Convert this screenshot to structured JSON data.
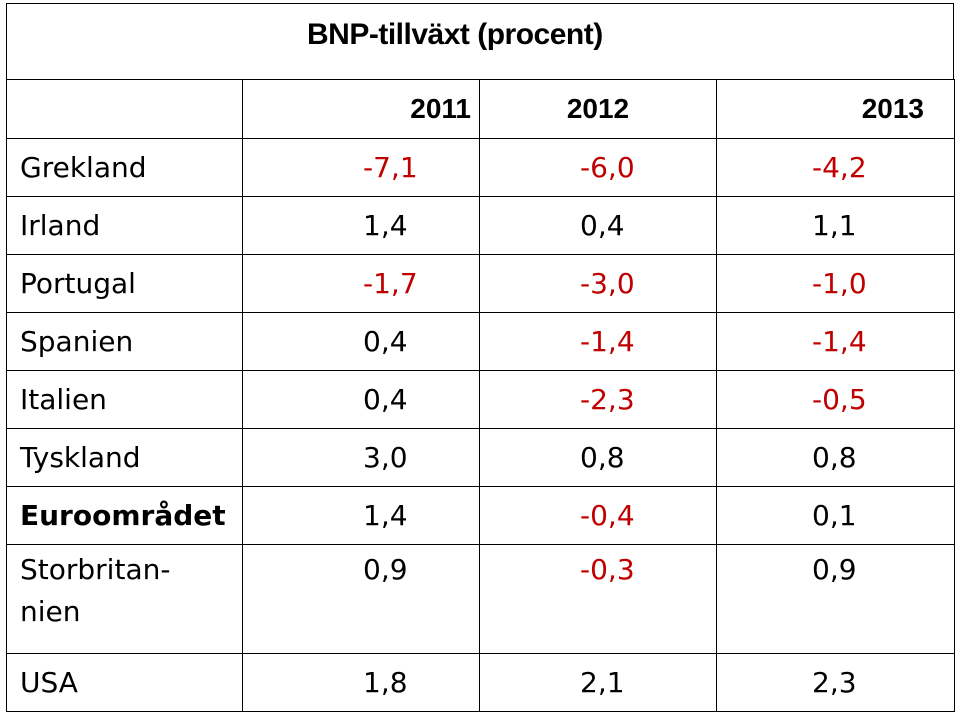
{
  "title": "BNP-tillväxt (procent)",
  "columns": [
    "2011",
    "2012",
    "2013"
  ],
  "rows": [
    {
      "country": "Grekland",
      "bold": false,
      "tall": false,
      "values": [
        "-7,1",
        "-6,0",
        "-4,2"
      ]
    },
    {
      "country": "Irland",
      "bold": false,
      "tall": false,
      "values": [
        "1,4",
        "0,4",
        "1,1"
      ]
    },
    {
      "country": "Portugal",
      "bold": false,
      "tall": false,
      "values": [
        "-1,7",
        "-3,0",
        "-1,0"
      ]
    },
    {
      "country": "Spanien",
      "bold": false,
      "tall": false,
      "values": [
        "0,4",
        "-1,4",
        "-1,4"
      ]
    },
    {
      "country": "Italien",
      "bold": false,
      "tall": false,
      "values": [
        "0,4",
        "-2,3",
        "-0,5"
      ]
    },
    {
      "country": "Tyskland",
      "bold": false,
      "tall": false,
      "values": [
        "3,0",
        "0,8",
        "0,8"
      ]
    },
    {
      "country": "Euroområdet",
      "bold": true,
      "tall": false,
      "values": [
        "1,4",
        "-0,4",
        "0,1"
      ]
    },
    {
      "country": "Storbritan-\nnien",
      "bold": false,
      "tall": true,
      "values": [
        "0,9",
        "-0,3",
        "0,9"
      ]
    },
    {
      "country": "USA",
      "bold": false,
      "tall": false,
      "values": [
        "1,8",
        "2,1",
        "2,3"
      ]
    }
  ],
  "colors": {
    "negative": "#c00000",
    "positive": "#000000",
    "border": "#000000"
  }
}
